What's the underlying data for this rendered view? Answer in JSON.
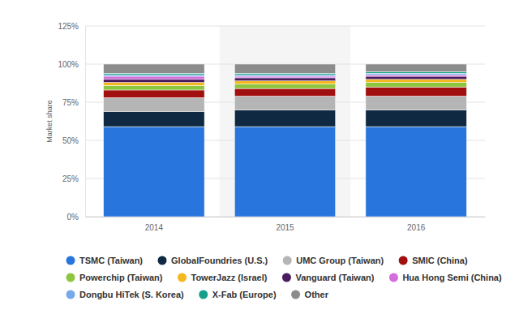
{
  "chart_data": {
    "type": "bar",
    "stacked": true,
    "grid": true,
    "legend": "bottom",
    "y_label": "Market share",
    "categories": [
      "2014",
      "2015",
      "2016"
    ],
    "ylim": [
      0,
      125
    ],
    "yticks": [
      {
        "value": 0,
        "label": "0%"
      },
      {
        "value": 25,
        "label": "25%"
      },
      {
        "value": 50,
        "label": "50%"
      },
      {
        "value": 75,
        "label": "75%"
      },
      {
        "value": 100,
        "label": "100%"
      },
      {
        "value": 125,
        "label": "125%"
      }
    ],
    "series": [
      {
        "name": "TSMC (Taiwan)",
        "color": "#2876dd",
        "values": [
          59,
          59,
          59
        ]
      },
      {
        "name": "GlobalFoundries (U.S.)",
        "color": "#0f2942",
        "values": [
          10,
          11,
          11
        ]
      },
      {
        "name": "UMC Group (Taiwan)",
        "color": "#b5b5b5",
        "values": [
          9,
          9,
          9
        ]
      },
      {
        "name": "SMIC (China)",
        "color": "#a10f0f",
        "values": [
          5,
          5,
          6
        ]
      },
      {
        "name": "Powerchip (Taiwan)",
        "color": "#8dc63f",
        "values": [
          3,
          3,
          3
        ]
      },
      {
        "name": "TowerJazz (Israel)",
        "color": "#f4b81e",
        "values": [
          2,
          2,
          2
        ]
      },
      {
        "name": "Vanguard (Taiwan)",
        "color": "#4b1b5f",
        "values": [
          2,
          2,
          2
        ]
      },
      {
        "name": "Hua Hong Semi (China)",
        "color": "#d46ddc",
        "values": [
          2,
          1,
          1
        ]
      },
      {
        "name": "Dongbu HiTek (S. Korea)",
        "color": "#75a9e8",
        "values": [
          1,
          1,
          1
        ]
      },
      {
        "name": "X-Fab (Europe)",
        "color": "#16a08a",
        "values": [
          1,
          1,
          1
        ]
      },
      {
        "name": "Other",
        "color": "#8c8c8c",
        "values": [
          6,
          6,
          5
        ]
      }
    ]
  }
}
